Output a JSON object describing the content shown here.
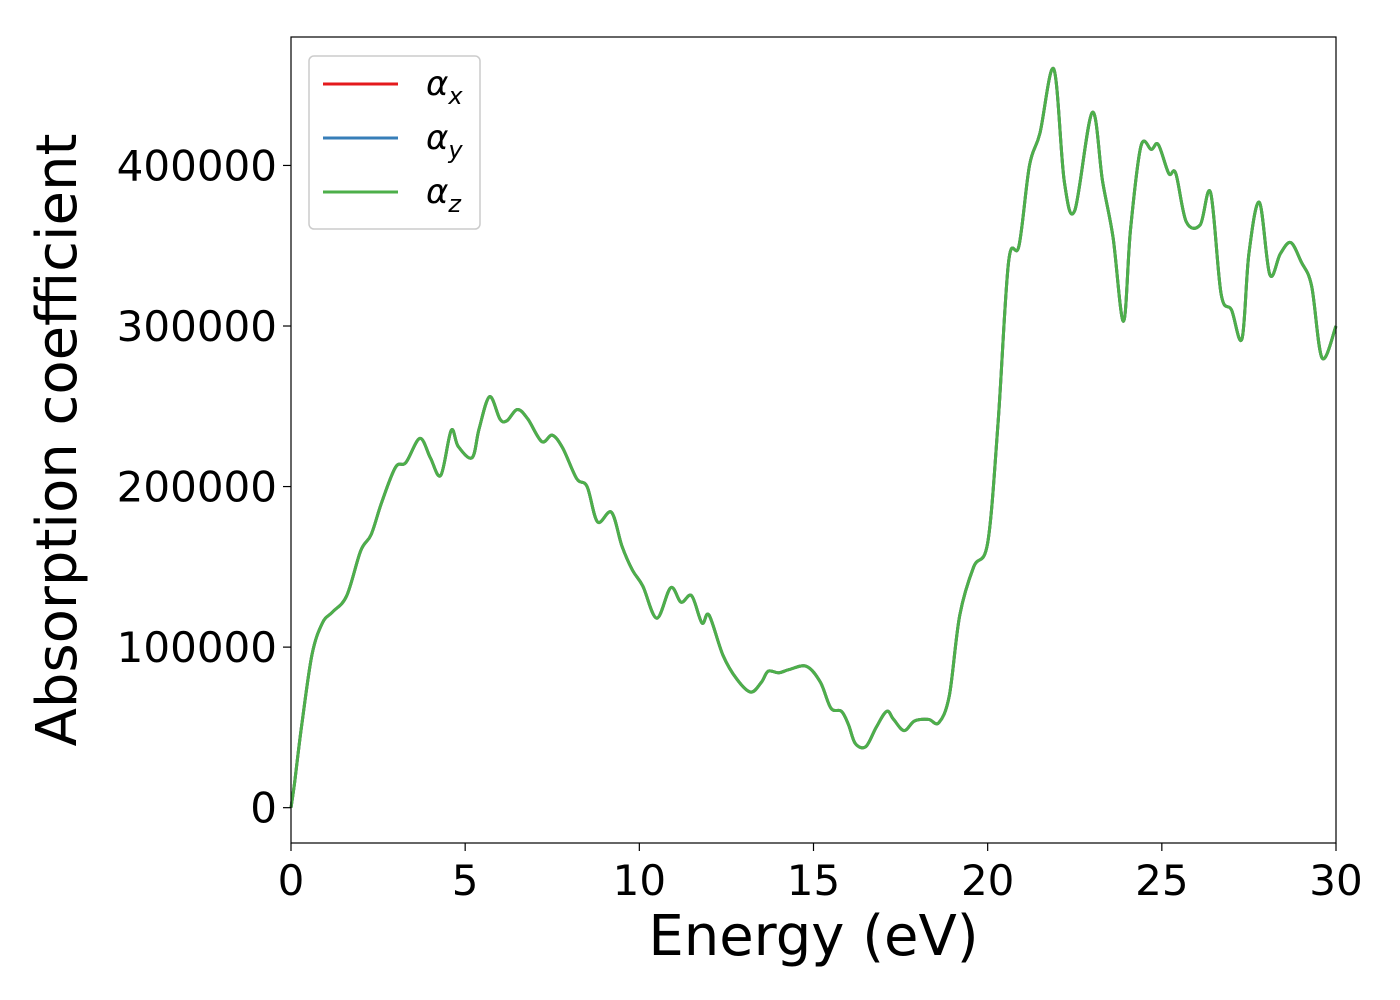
{
  "chart_data": {
    "type": "line",
    "title": "",
    "xlabel": "Energy (eV)",
    "ylabel": "Absorption coefficient",
    "xlim": [
      0,
      30
    ],
    "ylim": [
      -22000,
      480000
    ],
    "xticks": [
      0,
      5,
      10,
      15,
      20,
      25,
      30
    ],
    "xtick_labels": [
      "0",
      "5",
      "10",
      "15",
      "20",
      "25",
      "30"
    ],
    "yticks": [
      0,
      100000,
      200000,
      300000,
      400000
    ],
    "ytick_labels": [
      "0",
      "100000",
      "200000",
      "300000",
      "400000"
    ],
    "grid": false,
    "legend_position": "top-left",
    "legend": [
      {
        "base": "α",
        "sub": "x",
        "color": "#e41a1c"
      },
      {
        "base": "α",
        "sub": "y",
        "color": "#377eb8"
      },
      {
        "base": "α",
        "sub": "z",
        "color": "#4daf4a"
      }
    ],
    "x": [
      0,
      0.1,
      0.3,
      0.6,
      0.9,
      1.2,
      1.6,
      2.0,
      2.3,
      2.6,
      3.0,
      3.3,
      3.7,
      4.0,
      4.3,
      4.6,
      4.8,
      5.2,
      5.4,
      5.7,
      6.0,
      6.2,
      6.5,
      6.8,
      7.2,
      7.5,
      7.8,
      8.2,
      8.5,
      8.8,
      9.2,
      9.5,
      9.8,
      10.1,
      10.5,
      10.9,
      11.2,
      11.5,
      11.8,
      12.0,
      12.4,
      12.8,
      13.2,
      13.5,
      13.7,
      14.0,
      14.3,
      14.8,
      15.2,
      15.5,
      15.8,
      16.0,
      16.2,
      16.5,
      16.8,
      17.1,
      17.3,
      17.6,
      17.9,
      18.3,
      18.6,
      18.9,
      19.2,
      19.6,
      20.0,
      20.3,
      20.6,
      20.9,
      21.2,
      21.5,
      21.9,
      22.2,
      22.5,
      23.0,
      23.3,
      23.6,
      23.9,
      24.1,
      24.4,
      24.7,
      24.9,
      25.2,
      25.4,
      25.7,
      26.1,
      26.4,
      26.7,
      27.0,
      27.3,
      27.5,
      27.8,
      28.1,
      28.4,
      28.7,
      29.0,
      29.3,
      29.6,
      30.0
    ],
    "series": [
      {
        "name": "α_x",
        "color": "#e41a1c",
        "values": [
          0,
          15000,
          50000,
          95000,
          115000,
          122000,
          132000,
          160000,
          170000,
          190000,
          212000,
          215000,
          230000,
          218000,
          207000,
          235000,
          225000,
          218000,
          236000,
          256000,
          242000,
          241000,
          248000,
          242000,
          228000,
          232000,
          224000,
          205000,
          200000,
          178000,
          184000,
          163000,
          148000,
          138000,
          118000,
          137000,
          128000,
          132000,
          115000,
          120000,
          95000,
          80000,
          72000,
          78000,
          85000,
          84000,
          86000,
          88000,
          78000,
          62000,
          60000,
          52000,
          40000,
          38000,
          50000,
          60000,
          55000,
          48000,
          54000,
          55000,
          53000,
          70000,
          120000,
          150000,
          165000,
          240000,
          340000,
          350000,
          400000,
          420000,
          460000,
          390000,
          372000,
          433000,
          390000,
          355000,
          303000,
          360000,
          412000,
          410000,
          413000,
          395000,
          395000,
          365000,
          363000,
          383000,
          320000,
          310000,
          292000,
          345000,
          377000,
          332000,
          345000,
          352000,
          340000,
          325000,
          280000,
          300000
        ]
      },
      {
        "name": "α_y",
        "color": "#377eb8",
        "values": [
          0,
          15000,
          50000,
          95000,
          115000,
          122000,
          132000,
          160000,
          170000,
          190000,
          212000,
          215000,
          230000,
          218000,
          207000,
          235000,
          225000,
          218000,
          236000,
          256000,
          242000,
          241000,
          248000,
          242000,
          228000,
          232000,
          224000,
          205000,
          200000,
          178000,
          184000,
          163000,
          148000,
          138000,
          118000,
          137000,
          128000,
          132000,
          115000,
          120000,
          95000,
          80000,
          72000,
          78000,
          85000,
          84000,
          86000,
          88000,
          78000,
          62000,
          60000,
          52000,
          40000,
          38000,
          50000,
          60000,
          55000,
          48000,
          54000,
          55000,
          53000,
          70000,
          120000,
          150000,
          165000,
          240000,
          340000,
          350000,
          400000,
          420000,
          460000,
          390000,
          372000,
          433000,
          390000,
          355000,
          303000,
          360000,
          412000,
          410000,
          413000,
          395000,
          395000,
          365000,
          363000,
          383000,
          320000,
          310000,
          292000,
          345000,
          377000,
          332000,
          345000,
          352000,
          340000,
          325000,
          280000,
          300000
        ]
      },
      {
        "name": "α_z",
        "color": "#4daf4a",
        "values": [
          0,
          15000,
          50000,
          95000,
          115000,
          122000,
          132000,
          160000,
          170000,
          190000,
          212000,
          215000,
          230000,
          218000,
          207000,
          235000,
          225000,
          218000,
          236000,
          256000,
          242000,
          241000,
          248000,
          242000,
          228000,
          232000,
          224000,
          205000,
          200000,
          178000,
          184000,
          163000,
          148000,
          138000,
          118000,
          137000,
          128000,
          132000,
          115000,
          120000,
          95000,
          80000,
          72000,
          78000,
          85000,
          84000,
          86000,
          88000,
          78000,
          62000,
          60000,
          52000,
          40000,
          38000,
          50000,
          60000,
          55000,
          48000,
          54000,
          55000,
          53000,
          70000,
          120000,
          150000,
          165000,
          240000,
          340000,
          350000,
          400000,
          420000,
          460000,
          390000,
          372000,
          433000,
          390000,
          355000,
          303000,
          360000,
          412000,
          410000,
          413000,
          395000,
          395000,
          365000,
          363000,
          383000,
          320000,
          310000,
          292000,
          345000,
          377000,
          332000,
          345000,
          352000,
          340000,
          325000,
          280000,
          300000
        ]
      }
    ]
  }
}
